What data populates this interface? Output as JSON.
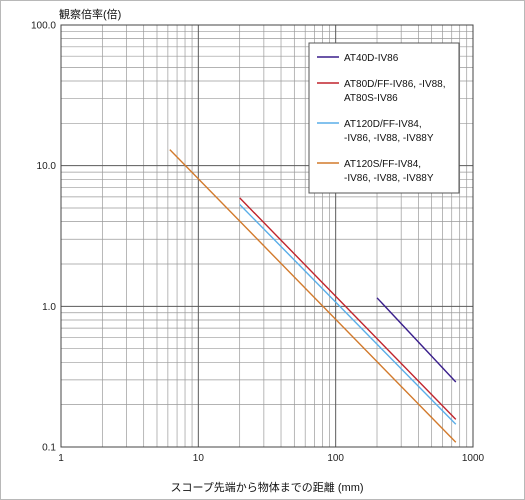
{
  "chart_data": {
    "type": "line",
    "title": "",
    "ylabel": "観察倍率(倍)",
    "xlabel": "スコープ先端から物体までの距離 (mm)",
    "x_scale": "log",
    "y_scale": "log",
    "xlim": [
      1,
      1000
    ],
    "ylim": [
      0.1,
      100
    ],
    "grid": true,
    "legend_position": "top-right",
    "x_ticks": [
      {
        "value": 1,
        "label": "1"
      },
      {
        "value": 10,
        "label": "10"
      },
      {
        "value": 100,
        "label": "100"
      },
      {
        "value": 1000,
        "label": "1000"
      }
    ],
    "y_ticks": [
      {
        "value": 100,
        "label": "100.0"
      },
      {
        "value": 10,
        "label": "10.0"
      },
      {
        "value": 1,
        "label": "1.0"
      },
      {
        "value": 0.1,
        "label": "0.1"
      }
    ],
    "series": [
      {
        "name_lines": [
          "AT40D-IV86"
        ],
        "color": "#3a1f8c",
        "points": [
          [
            200,
            1.15
          ],
          [
            750,
            0.29
          ]
        ]
      },
      {
        "name_lines": [
          "AT80D/FF-IV86, -IV88,",
          "AT80S-IV86"
        ],
        "color": "#c0242d",
        "points": [
          [
            20,
            5.9
          ],
          [
            750,
            0.157
          ]
        ]
      },
      {
        "name_lines": [
          "AT120D/FF-IV84,",
          "-IV86, -IV88, -IV88Y"
        ],
        "color": "#5aaee8",
        "points": [
          [
            20,
            5.3
          ],
          [
            750,
            0.145
          ]
        ]
      },
      {
        "name_lines": [
          "AT120S/FF-IV84,",
          "-IV86, -IV88, -IV88Y"
        ],
        "color": "#d27a2c",
        "points": [
          [
            6.2,
            13.0
          ],
          [
            750,
            0.108
          ]
        ]
      }
    ]
  }
}
